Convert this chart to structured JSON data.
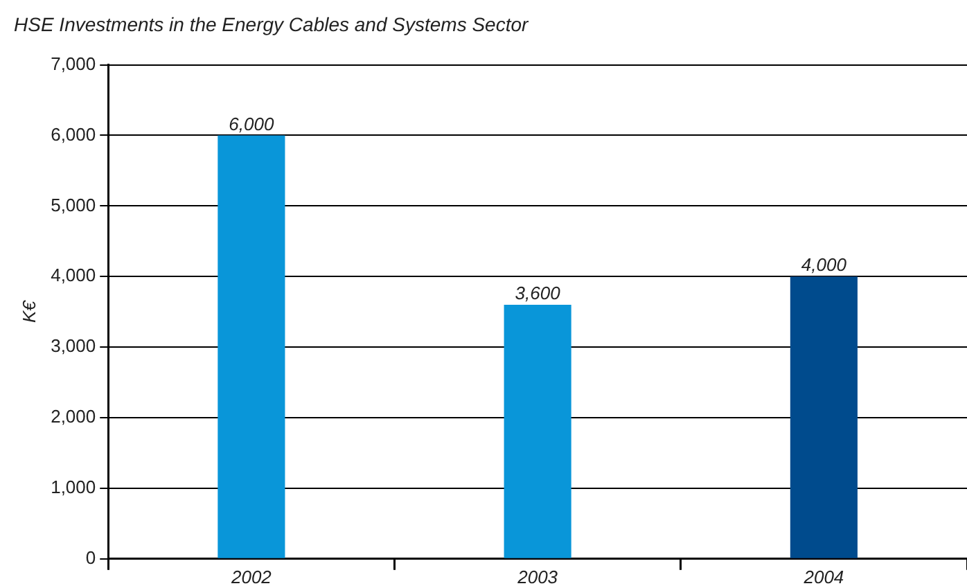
{
  "chart_data": {
    "type": "bar",
    "title": "HSE Investments in the Energy Cables and Systems Sector",
    "ylabel": "K€",
    "categories": [
      "2002",
      "2003",
      "2004"
    ],
    "values": [
      6000,
      3600,
      4000
    ],
    "colors": [
      "#0996d9",
      "#0996d9",
      "#004b8d"
    ],
    "value_labels": [
      "6,000",
      "3,600",
      "4,000"
    ],
    "ylim": [
      0,
      7000
    ],
    "yticks": [
      {
        "value": 0,
        "label": "0"
      },
      {
        "value": 1000,
        "label": "1,000"
      },
      {
        "value": 2000,
        "label": "2,000"
      },
      {
        "value": 3000,
        "label": "3,000"
      },
      {
        "value": 4000,
        "label": "4,000"
      },
      {
        "value": 5000,
        "label": "5,000"
      },
      {
        "value": 6000,
        "label": "6,000"
      },
      {
        "value": 7000,
        "label": "7,000"
      }
    ],
    "grid": "y",
    "legend": false
  }
}
